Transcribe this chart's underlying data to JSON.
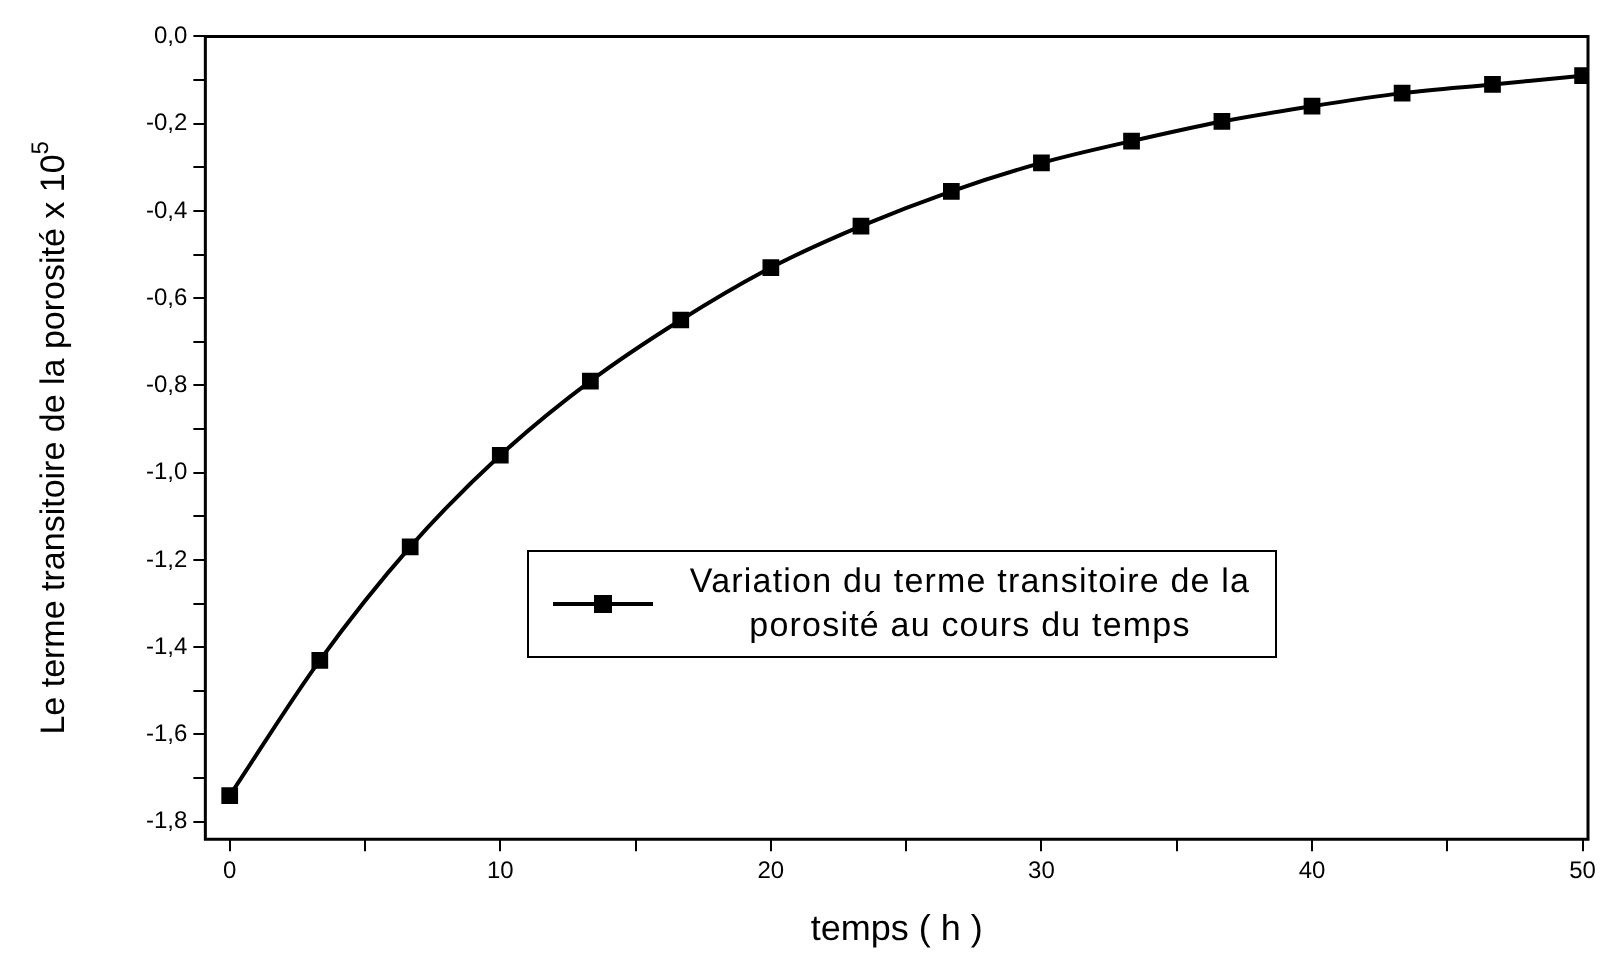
{
  "chart_data": {
    "type": "line",
    "xlabel": "temps ( h )",
    "ylabel": "Le terme transitoire de la porosité x 10$^{5}$",
    "x": [
      0,
      3.33,
      6.67,
      10,
      13.33,
      16.67,
      20,
      23.33,
      26.67,
      30,
      33.33,
      36.67,
      40,
      43.33,
      46.67,
      50
    ],
    "series": [
      {
        "name": "Variation du terme transitoire de la porosité au cours du temps",
        "color": "#000000",
        "values": [
          -1.74,
          -1.43,
          -1.17,
          -0.96,
          -0.79,
          -0.65,
          -0.53,
          -0.435,
          -0.355,
          -0.29,
          -0.24,
          -0.195,
          -0.16,
          -0.13,
          -0.11,
          -0.09
        ]
      }
    ],
    "xlim": [
      -0.9,
      50.2
    ],
    "ylim": [
      -1.84,
      0
    ],
    "xticks": [
      0,
      {
        "value": 5,
        "label": null
      },
      10,
      {
        "value": 15,
        "label": null
      },
      20,
      {
        "value": 25,
        "label": null
      },
      30,
      {
        "value": 35,
        "label": null
      },
      40,
      {
        "value": 45,
        "label": null
      },
      50
    ],
    "yticks": [
      {
        "value": -1.8,
        "label": "-1,8"
      },
      {
        "value": -1.7,
        "label": null
      },
      {
        "value": -1.6,
        "label": "-1,6"
      },
      {
        "value": -1.5,
        "label": null
      },
      {
        "value": -1.4,
        "label": "-1,4"
      },
      {
        "value": -1.3,
        "label": null
      },
      {
        "value": -1.2,
        "label": "-1,2"
      },
      {
        "value": -1.1,
        "label": null
      },
      {
        "value": -1.0,
        "label": "-1,0"
      },
      {
        "value": -0.9,
        "label": null
      },
      {
        "value": -0.8,
        "label": "-0,8"
      },
      {
        "value": -0.7,
        "label": null
      },
      {
        "value": -0.6,
        "label": "-0,6"
      },
      {
        "value": -0.5,
        "label": null
      },
      {
        "value": -0.4,
        "label": "-0,4"
      },
      {
        "value": -0.3,
        "label": null
      },
      {
        "value": -0.2,
        "label": "-0,2"
      },
      {
        "value": -0.1,
        "label": null
      },
      {
        "value": 0,
        "label": "0,0"
      }
    ],
    "grid": false,
    "legend": "bottom",
    "marker": "square",
    "line_style": "solid"
  }
}
